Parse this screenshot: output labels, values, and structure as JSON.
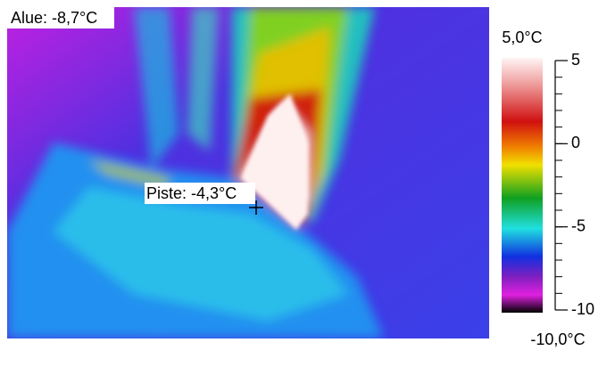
{
  "image": {
    "area_label": "Alue: -8,7°C",
    "spot_label": "Piste: -4,3°C"
  },
  "scale": {
    "max_label": "5,0°C",
    "min_label": "-10,0°C",
    "range": [
      -10,
      5
    ],
    "ticks": [
      5,
      0,
      -5,
      -10
    ]
  }
}
